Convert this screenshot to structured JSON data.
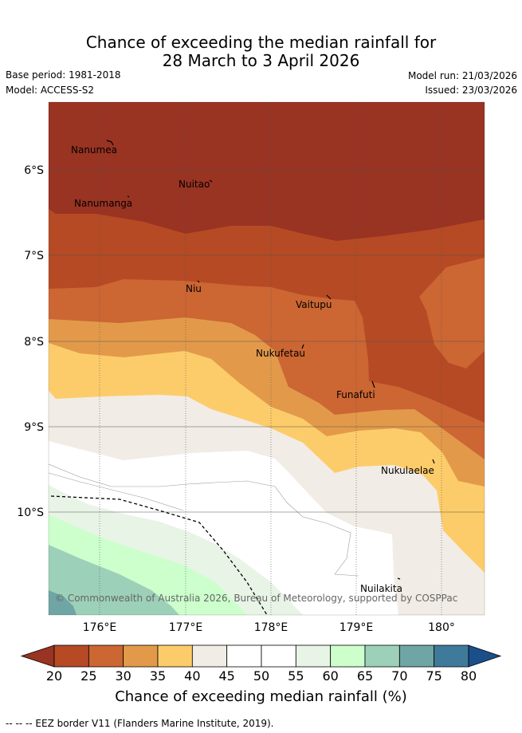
{
  "title": {
    "line1": "Chance of exceeding the median rainfall for",
    "line2": "28 March to 3 April 2026"
  },
  "meta": {
    "base_period": "Base period: 1981-2018",
    "model": "Model: ACCESS-S2",
    "model_run": "Model run: 21/03/2026",
    "issued": "Issued: 23/03/2026"
  },
  "map": {
    "lat_labels": [
      "6°S",
      "7°S",
      "8°S",
      "9°S",
      "10°S"
    ],
    "lon_labels": [
      "176°E",
      "177°E",
      "178°E",
      "179°E",
      "180°"
    ],
    "places": [
      "Nanumea",
      "Nuitao",
      "Nanumanga",
      "Niu",
      "Vaitupu",
      "Nukufetau",
      "Funafuti",
      "Nukulaelae",
      "Nuilakita"
    ],
    "copyright": "© Commonwealth of Australia 2026, Bureau of Meteorology, supported by COSPPac"
  },
  "colorbar": {
    "ticks": [
      "20",
      "25",
      "30",
      "35",
      "40",
      "45",
      "50",
      "55",
      "60",
      "65",
      "70",
      "75",
      "80"
    ],
    "colors": [
      "#993322",
      "#b54a24",
      "#cc6633",
      "#e29a4a",
      "#fdcc6a",
      "#f1ece6",
      "#ffffff",
      "#ffffff",
      "#e8f4e6",
      "#ccffcc",
      "#9dd0b8",
      "#6fa5a5",
      "#407a9a",
      "#1a4f8a"
    ],
    "title": "Chance of exceeding median rainfall (%)"
  },
  "footer": "--  --  -- EEZ border V11 (Flanders Marine Institute, 2019)."
}
